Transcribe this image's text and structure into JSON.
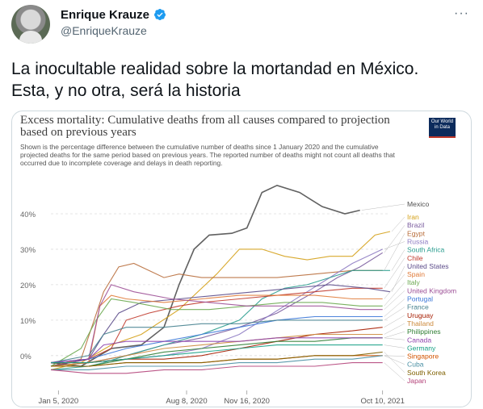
{
  "author": {
    "name": "Enrique Krauze",
    "handle": "@EnriqueKrauze"
  },
  "tweet": {
    "line1": "La inocultable realidad sobre la mortandad en México.",
    "line2": "Esta, y no otra, será la historia"
  },
  "colors": {
    "verified": "#1d9bf0",
    "mexico": "#4d4d4d",
    "owid_bg": "#0c2b5c"
  },
  "icons": {
    "verified": "verified-badge-icon",
    "more": "more-options-icon"
  },
  "card": {
    "title_line1": "Excess mortality: Cumulative deaths from all causes compared to projection",
    "title_line2": "based on previous years",
    "subtitle_line1": "Shown is the percentage difference between the cumulative number of deaths since 1 January 2020 and the cumulative",
    "subtitle_line2": "projected deaths for the same period based on previous years. The reported number of deaths might not count all deaths that",
    "subtitle_line3": "occurred due to incomplete coverage and delays in death reporting.",
    "logo_line1": "Our World",
    "logo_line2": "in Data"
  },
  "chart_data": {
    "type": "line",
    "x_tick_labels": [
      "Jan 5, 2020",
      "Aug 8, 2020",
      "Nov 16, 2020",
      "Oct 10, 2021"
    ],
    "y_tick_labels": [
      "0%",
      "10%",
      "20%",
      "30%",
      "40%"
    ],
    "ylim": [
      -8,
      45
    ],
    "xlim": [
      0,
      90
    ],
    "series": [
      {
        "name": "Mexico",
        "color": "#505050",
        "x": [
          0,
          8,
          16,
          24,
          30,
          34,
          38,
          42,
          48,
          52,
          56,
          60,
          66,
          72,
          78,
          82
        ],
        "y": [
          -2,
          -3,
          2,
          3,
          8,
          20,
          30,
          34,
          34.5,
          36,
          46,
          48,
          46,
          42,
          40,
          41
        ]
      },
      {
        "name": "Iran",
        "color": "#d4a017",
        "x": [
          0,
          8,
          16,
          24,
          34,
          44,
          50,
          56,
          62,
          68,
          74,
          80,
          86,
          90
        ],
        "y": [
          -4,
          -2,
          3,
          6,
          13,
          23,
          30,
          30,
          28,
          27,
          28,
          28,
          34,
          35
        ]
      },
      {
        "name": "Brazil",
        "color": "#7a5c9e",
        "x": [
          0,
          10,
          20,
          30,
          40,
          50,
          60,
          70,
          76,
          82,
          88
        ],
        "y": [
          -3,
          -2,
          0,
          3,
          5,
          8,
          12,
          18,
          22,
          25,
          29
        ]
      },
      {
        "name": "Egypt",
        "color": "#b86d3b",
        "x": [
          0,
          8,
          14,
          18,
          22,
          26,
          30,
          34,
          40,
          50,
          60,
          70,
          80,
          88
        ],
        "y": [
          -3,
          -1,
          18,
          25,
          26,
          24,
          22,
          23,
          22,
          22,
          22,
          23,
          24,
          24
        ]
      },
      {
        "name": "Russia",
        "color": "#8e7cc3",
        "x": [
          0,
          10,
          20,
          30,
          40,
          50,
          56,
          62,
          68,
          74,
          80,
          88
        ],
        "y": [
          -3,
          -2,
          -1,
          0,
          2,
          6,
          10,
          14,
          18,
          22,
          26,
          30
        ]
      },
      {
        "name": "South Africa",
        "color": "#2a9d8f",
        "x": [
          0,
          10,
          14,
          20,
          30,
          40,
          50,
          56,
          62,
          68,
          74,
          80,
          86,
          90
        ],
        "y": [
          -4,
          -3,
          -2,
          0,
          3,
          6,
          10,
          16,
          19,
          20,
          22,
          24,
          24,
          24
        ]
      },
      {
        "name": "Chile",
        "color": "#c0392b",
        "x": [
          0,
          10,
          16,
          20,
          26,
          34,
          40,
          50,
          60,
          70,
          80,
          88
        ],
        "y": [
          -3,
          -1,
          2,
          10,
          12,
          14,
          15,
          16,
          17,
          18,
          19,
          19
        ]
      },
      {
        "name": "United States",
        "color": "#5b4b8a",
        "x": [
          0,
          10,
          14,
          18,
          24,
          34,
          44,
          54,
          64,
          74,
          84,
          90
        ],
        "y": [
          -3,
          -1,
          6,
          12,
          15,
          16,
          17,
          18,
          19,
          20,
          19,
          18
        ]
      },
      {
        "name": "Spain",
        "color": "#e07b39",
        "x": [
          0,
          10,
          13,
          16,
          20,
          30,
          40,
          50,
          60,
          70,
          80,
          88
        ],
        "y": [
          -3,
          -2,
          14,
          17,
          16,
          15,
          16,
          17,
          17,
          17,
          16,
          16
        ]
      },
      {
        "name": "Italy",
        "color": "#6aa84f",
        "x": [
          0,
          8,
          12,
          16,
          22,
          32,
          42,
          52,
          62,
          72,
          82,
          88
        ],
        "y": [
          -3,
          2,
          10,
          16,
          15,
          13,
          13,
          14,
          15,
          15,
          14,
          14
        ]
      },
      {
        "name": "United Kingdom",
        "color": "#9c4f96",
        "x": [
          0,
          10,
          13,
          16,
          22,
          32,
          42,
          52,
          62,
          72,
          82,
          88
        ],
        "y": [
          -2,
          -1,
          14,
          20,
          18,
          16,
          15,
          14,
          14,
          14,
          13,
          13
        ]
      },
      {
        "name": "Portugal",
        "color": "#3c78d8",
        "x": [
          0,
          10,
          20,
          30,
          40,
          50,
          60,
          70,
          80,
          88
        ],
        "y": [
          -2,
          -1,
          2,
          4,
          6,
          8,
          10,
          11,
          11,
          11
        ]
      },
      {
        "name": "France",
        "color": "#45818e",
        "x": [
          0,
          10,
          14,
          20,
          30,
          40,
          50,
          60,
          70,
          80,
          88
        ],
        "y": [
          -2,
          0,
          6,
          8,
          8,
          9,
          9,
          10,
          10,
          10,
          10
        ]
      },
      {
        "name": "Uruguay",
        "color": "#a61c00",
        "x": [
          0,
          10,
          20,
          30,
          40,
          50,
          60,
          70,
          80,
          88
        ],
        "y": [
          -2,
          -2,
          -1,
          -1,
          0,
          2,
          4,
          6,
          7,
          8
        ]
      },
      {
        "name": "Thailand",
        "color": "#cc8a3c",
        "x": [
          0,
          10,
          20,
          30,
          40,
          50,
          60,
          70,
          80,
          88
        ],
        "y": [
          -3,
          -2,
          0,
          2,
          3,
          4,
          5,
          6,
          6,
          6
        ]
      },
      {
        "name": "Philippines",
        "color": "#2e7d32",
        "x": [
          0,
          10,
          20,
          30,
          40,
          50,
          60,
          70,
          80,
          88
        ],
        "y": [
          -3,
          -3,
          -1,
          1,
          2,
          3,
          4,
          4,
          5,
          5
        ]
      },
      {
        "name": "Canada",
        "color": "#8e44ad",
        "x": [
          0,
          10,
          14,
          20,
          30,
          40,
          50,
          60,
          70,
          80,
          88
        ],
        "y": [
          -2,
          -1,
          3,
          4,
          4,
          4,
          4,
          5,
          5,
          5,
          5
        ]
      },
      {
        "name": "Germany",
        "color": "#16a085",
        "x": [
          0,
          10,
          20,
          30,
          40,
          50,
          60,
          70,
          80,
          88
        ],
        "y": [
          -2,
          -2,
          -1,
          0,
          1,
          2,
          3,
          3,
          3,
          3
        ]
      },
      {
        "name": "Singapore",
        "color": "#d35400",
        "x": [
          0,
          10,
          20,
          30,
          40,
          50,
          60,
          70,
          80,
          88
        ],
        "y": [
          -3,
          -3,
          -2,
          -2,
          -2,
          -1,
          -1,
          0,
          0,
          0
        ]
      },
      {
        "name": "Cuba",
        "color": "#4a90a4",
        "x": [
          0,
          10,
          20,
          30,
          40,
          50,
          60,
          70,
          80,
          88
        ],
        "y": [
          -4,
          -4,
          -3,
          -3,
          -3,
          -2,
          -2,
          -1,
          -1,
          0
        ]
      },
      {
        "name": "South Korea",
        "color": "#7f6000",
        "x": [
          0,
          10,
          20,
          30,
          40,
          50,
          60,
          70,
          80,
          88
        ],
        "y": [
          -3,
          -3,
          -2,
          -2,
          -2,
          -1,
          -1,
          0,
          0,
          1
        ]
      },
      {
        "name": "Japan",
        "color": "#b4447a",
        "x": [
          0,
          10,
          20,
          30,
          40,
          50,
          60,
          70,
          80,
          88
        ],
        "y": [
          -4,
          -5,
          -5,
          -4,
          -4,
          -3,
          -3,
          -3,
          -2,
          -2
        ]
      }
    ]
  }
}
